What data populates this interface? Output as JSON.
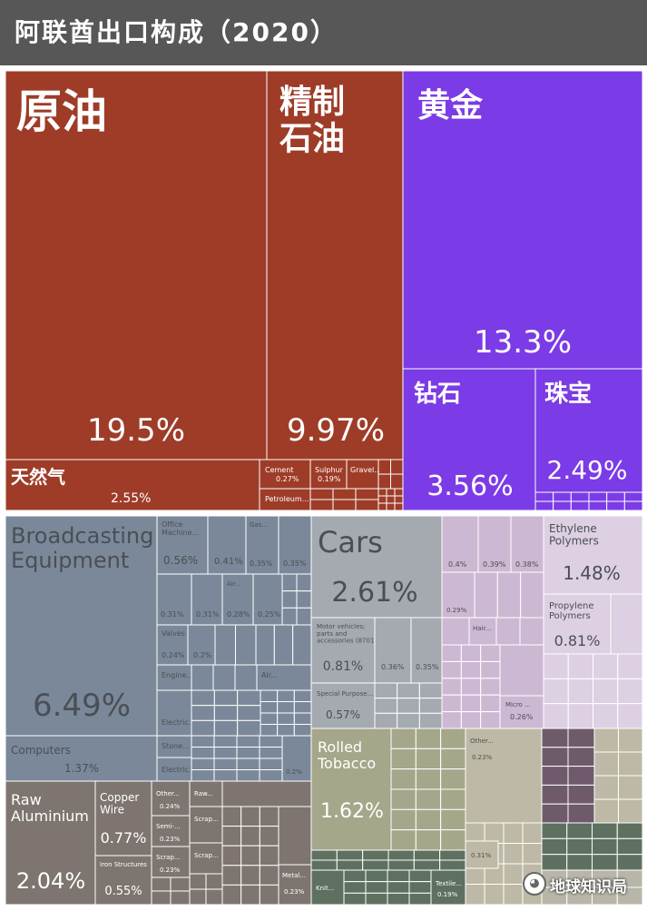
{
  "header": {
    "title": "阿联酋出口构成（2020）"
  },
  "colors": {
    "oil": "#9e3c28",
    "precious": "#7b3be6",
    "machinery": "#7b8899",
    "transport": "#a4aab0",
    "chemicals": "#cdb8d3",
    "chemicals_light": "#ddd0e2",
    "metals": "#7e7570",
    "tobacco_group": "#a6a68a",
    "tobacco_light": "#bdb9a6",
    "dark_purple": "#6e5a6a",
    "dark_green": "#5e7060",
    "other_light": "#b8b6a8"
  },
  "chart_data": {
    "type": "treemap",
    "title": "阿联酋出口构成（2020）",
    "items": [
      {
        "label": "原油",
        "value": 19.5,
        "value_label": "19.5%",
        "group": "oil"
      },
      {
        "label": "精制\n石油",
        "value": 9.97,
        "value_label": "9.97%",
        "group": "oil"
      },
      {
        "label": "天然气",
        "value": 2.55,
        "value_label": "2.55%",
        "group": "oil"
      },
      {
        "label": "Cement",
        "value": 0.27,
        "value_label": "0.27%",
        "group": "oil"
      },
      {
        "label": "Sulphur",
        "value": 0.19,
        "value_label": "0.19%",
        "group": "oil"
      },
      {
        "label": "Gravel...",
        "value": null,
        "value_label": "",
        "group": "oil"
      },
      {
        "label": "Petroleum...",
        "value": null,
        "value_label": "",
        "group": "oil"
      },
      {
        "label": "黄金",
        "value": 13.3,
        "value_label": "13.3%",
        "group": "precious"
      },
      {
        "label": "钻石",
        "value": 3.56,
        "value_label": "3.56%",
        "group": "precious"
      },
      {
        "label": "珠宝",
        "value": 2.49,
        "value_label": "2.49%",
        "group": "precious"
      },
      {
        "label": "Broadcasting\nEquipment",
        "value": 6.49,
        "value_label": "6.49%",
        "group": "machinery"
      },
      {
        "label": "Computers",
        "value": 1.37,
        "value_label": "1.37%",
        "group": "machinery"
      },
      {
        "label": "Office\nMachine...",
        "value": 0.56,
        "value_label": "0.56%",
        "group": "machinery"
      },
      {
        "label": "",
        "value": 0.41,
        "value_label": "0.41%",
        "group": "machinery"
      },
      {
        "label": "Gas...",
        "value": 0.35,
        "value_label": "0.35%",
        "group": "machinery"
      },
      {
        "label": "",
        "value": 0.35,
        "value_label": "0.35%",
        "group": "machinery"
      },
      {
        "label": "",
        "value": 0.31,
        "value_label": "0.31%",
        "group": "machinery"
      },
      {
        "label": "Air...",
        "value": 0.31,
        "value_label": "0.31%",
        "group": "machinery"
      },
      {
        "label": "",
        "value": 0.28,
        "value_label": "0.28%",
        "group": "machinery"
      },
      {
        "label": "",
        "value": 0.25,
        "value_label": "0.25%",
        "group": "machinery"
      },
      {
        "label": "Valves",
        "value": 0.24,
        "value_label": "0.24%",
        "group": "machinery"
      },
      {
        "label": "",
        "value": 0.2,
        "value_label": "0.2%",
        "group": "machinery"
      },
      {
        "label": "Engine...",
        "value": null,
        "value_label": "",
        "group": "machinery"
      },
      {
        "label": "Air...",
        "value": null,
        "value_label": "",
        "group": "machinery"
      },
      {
        "label": "Electric...",
        "value": null,
        "value_label": "",
        "group": "machinery"
      },
      {
        "label": "Stone...",
        "value": null,
        "value_label": "",
        "group": "machinery"
      },
      {
        "label": "Electric...",
        "value": null,
        "value_label": "",
        "group": "machinery"
      },
      {
        "label": "",
        "value": 0.2,
        "value_label": "0.2%",
        "group": "machinery"
      },
      {
        "label": "Cars",
        "value": 2.61,
        "value_label": "2.61%",
        "group": "transport"
      },
      {
        "label": "Motor vehicles;\nparts and\naccessories (8701...",
        "value": 0.81,
        "value_label": "0.81%",
        "group": "transport"
      },
      {
        "label": "",
        "value": 0.36,
        "value_label": "0.36%",
        "group": "transport"
      },
      {
        "label": "",
        "value": 0.35,
        "value_label": "0.35%",
        "group": "transport"
      },
      {
        "label": "Special Purpose...",
        "value": 0.57,
        "value_label": "0.57%",
        "group": "transport"
      },
      {
        "label": "",
        "value": 0.4,
        "value_label": "0.4%",
        "group": "chemicals"
      },
      {
        "label": "",
        "value": 0.39,
        "value_label": "0.39%",
        "group": "chemicals"
      },
      {
        "label": "",
        "value": 0.38,
        "value_label": "0.38%",
        "group": "chemicals"
      },
      {
        "label": "",
        "value": 0.29,
        "value_label": "0.29%",
        "group": "chemicals"
      },
      {
        "label": "Hair...",
        "value": null,
        "value_label": "",
        "group": "chemicals"
      },
      {
        "label": "Micro ...",
        "value": 0.26,
        "value_label": "0.26%",
        "group": "chemicals"
      },
      {
        "label": "Ethylene\nPolymers",
        "value": 1.48,
        "value_label": "1.48%",
        "group": "chemicals"
      },
      {
        "label": "Propylene\nPolymers",
        "value": 0.81,
        "value_label": "0.81%",
        "group": "chemicals"
      },
      {
        "label": "Raw\nAluminium",
        "value": 2.04,
        "value_label": "2.04%",
        "group": "metals"
      },
      {
        "label": "Copper\nWire",
        "value": 0.77,
        "value_label": "0.77%",
        "group": "metals"
      },
      {
        "label": "Iron Structures",
        "value": 0.55,
        "value_label": "0.55%",
        "group": "metals"
      },
      {
        "label": "Other...",
        "value": 0.24,
        "value_label": "0.24%",
        "group": "metals"
      },
      {
        "label": "Semi-...",
        "value": 0.23,
        "value_label": "0.23%",
        "group": "metals"
      },
      {
        "label": "Scrap...",
        "value": 0.23,
        "value_label": "0.23%",
        "group": "metals"
      },
      {
        "label": "Raw...",
        "value": null,
        "value_label": "",
        "group": "metals"
      },
      {
        "label": "Scrap...",
        "value": null,
        "value_label": "",
        "group": "metals"
      },
      {
        "label": "Scrap...",
        "value": null,
        "value_label": "",
        "group": "metals"
      },
      {
        "label": "Metal...",
        "value": 0.23,
        "value_label": "0.23%",
        "group": "metals"
      },
      {
        "label": "Rolled\nTobacco",
        "value": 1.62,
        "value_label": "1.62%",
        "group": "tobacco_group"
      },
      {
        "label": "Other...",
        "value": 0.23,
        "value_label": "0.23%",
        "group": "tobacco_group"
      },
      {
        "label": "",
        "value": 0.31,
        "value_label": "0.31%",
        "group": "tobacco_group"
      },
      {
        "label": "Knit...",
        "value": null,
        "value_label": "",
        "group": "textile"
      },
      {
        "label": "Textile...",
        "value": 0.19,
        "value_label": "0.19%",
        "group": "textile"
      }
    ]
  },
  "watermark": {
    "icon": "wechat-icon",
    "text": "地球知识局"
  }
}
